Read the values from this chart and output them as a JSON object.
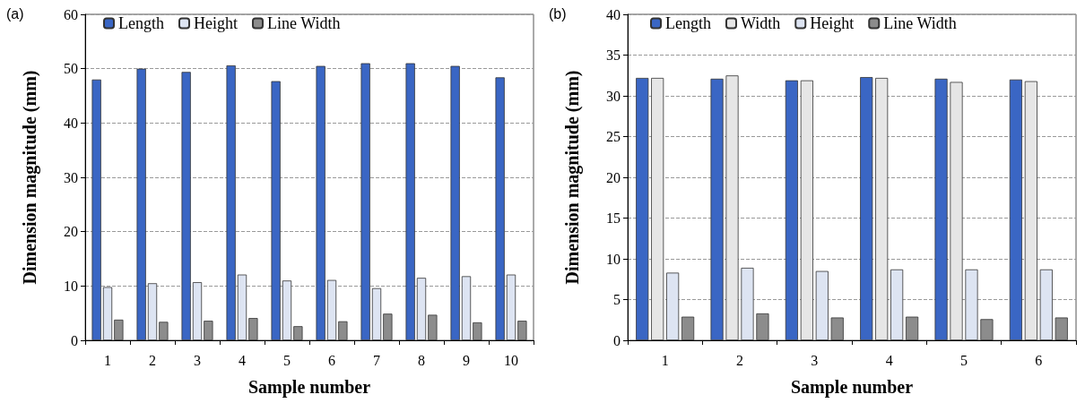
{
  "chart_data": [
    {
      "type": "bar",
      "title": "(a)",
      "xlabel": "Sample number",
      "ylabel": "Dimension magnitude (mm)",
      "categories": [
        "1",
        "2",
        "3",
        "4",
        "5",
        "6",
        "7",
        "8",
        "9",
        "10"
      ],
      "series": [
        {
          "name": "Length",
          "color": "#3a66c4",
          "values": [
            48.0,
            50.0,
            49.4,
            50.6,
            47.7,
            50.5,
            51.0,
            51.0,
            50.5,
            48.4
          ]
        },
        {
          "name": "Height",
          "color": "#dde4f2",
          "values": [
            9.8,
            10.5,
            10.7,
            12.1,
            11.0,
            11.1,
            9.6,
            11.5,
            11.8,
            12.1
          ]
        },
        {
          "name": "Line Width",
          "color": "#8c8c8c",
          "values": [
            3.8,
            3.4,
            3.6,
            4.1,
            2.6,
            3.5,
            4.9,
            4.7,
            3.3,
            3.6
          ]
        }
      ],
      "ylim": [
        0,
        60
      ],
      "yticks": [
        0,
        10,
        20,
        30,
        40,
        50,
        60
      ],
      "grid": "y",
      "legend": "top left"
    },
    {
      "type": "bar",
      "title": "(b)",
      "xlabel": "Sample number",
      "ylabel": "Dimension magnitude (mm)",
      "categories": [
        "1",
        "2",
        "3",
        "4",
        "5",
        "6"
      ],
      "series": [
        {
          "name": "Length",
          "color": "#3a66c4",
          "values": [
            32.2,
            32.1,
            31.9,
            32.3,
            32.1,
            32.0
          ]
        },
        {
          "name": "Width",
          "color": "#e6e6e6",
          "values": [
            32.2,
            32.5,
            31.9,
            32.2,
            31.7,
            31.8
          ]
        },
        {
          "name": "Height",
          "color": "#dde4f2",
          "values": [
            8.3,
            8.9,
            8.5,
            8.7,
            8.7,
            8.7
          ]
        },
        {
          "name": "Line Width",
          "color": "#8c8c8c",
          "values": [
            2.9,
            3.3,
            2.8,
            2.9,
            2.6,
            2.8
          ]
        }
      ],
      "ylim": [
        0,
        40
      ],
      "yticks": [
        0,
        5,
        10,
        15,
        20,
        25,
        30,
        35,
        40
      ],
      "grid": "y",
      "legend": "top left"
    }
  ]
}
